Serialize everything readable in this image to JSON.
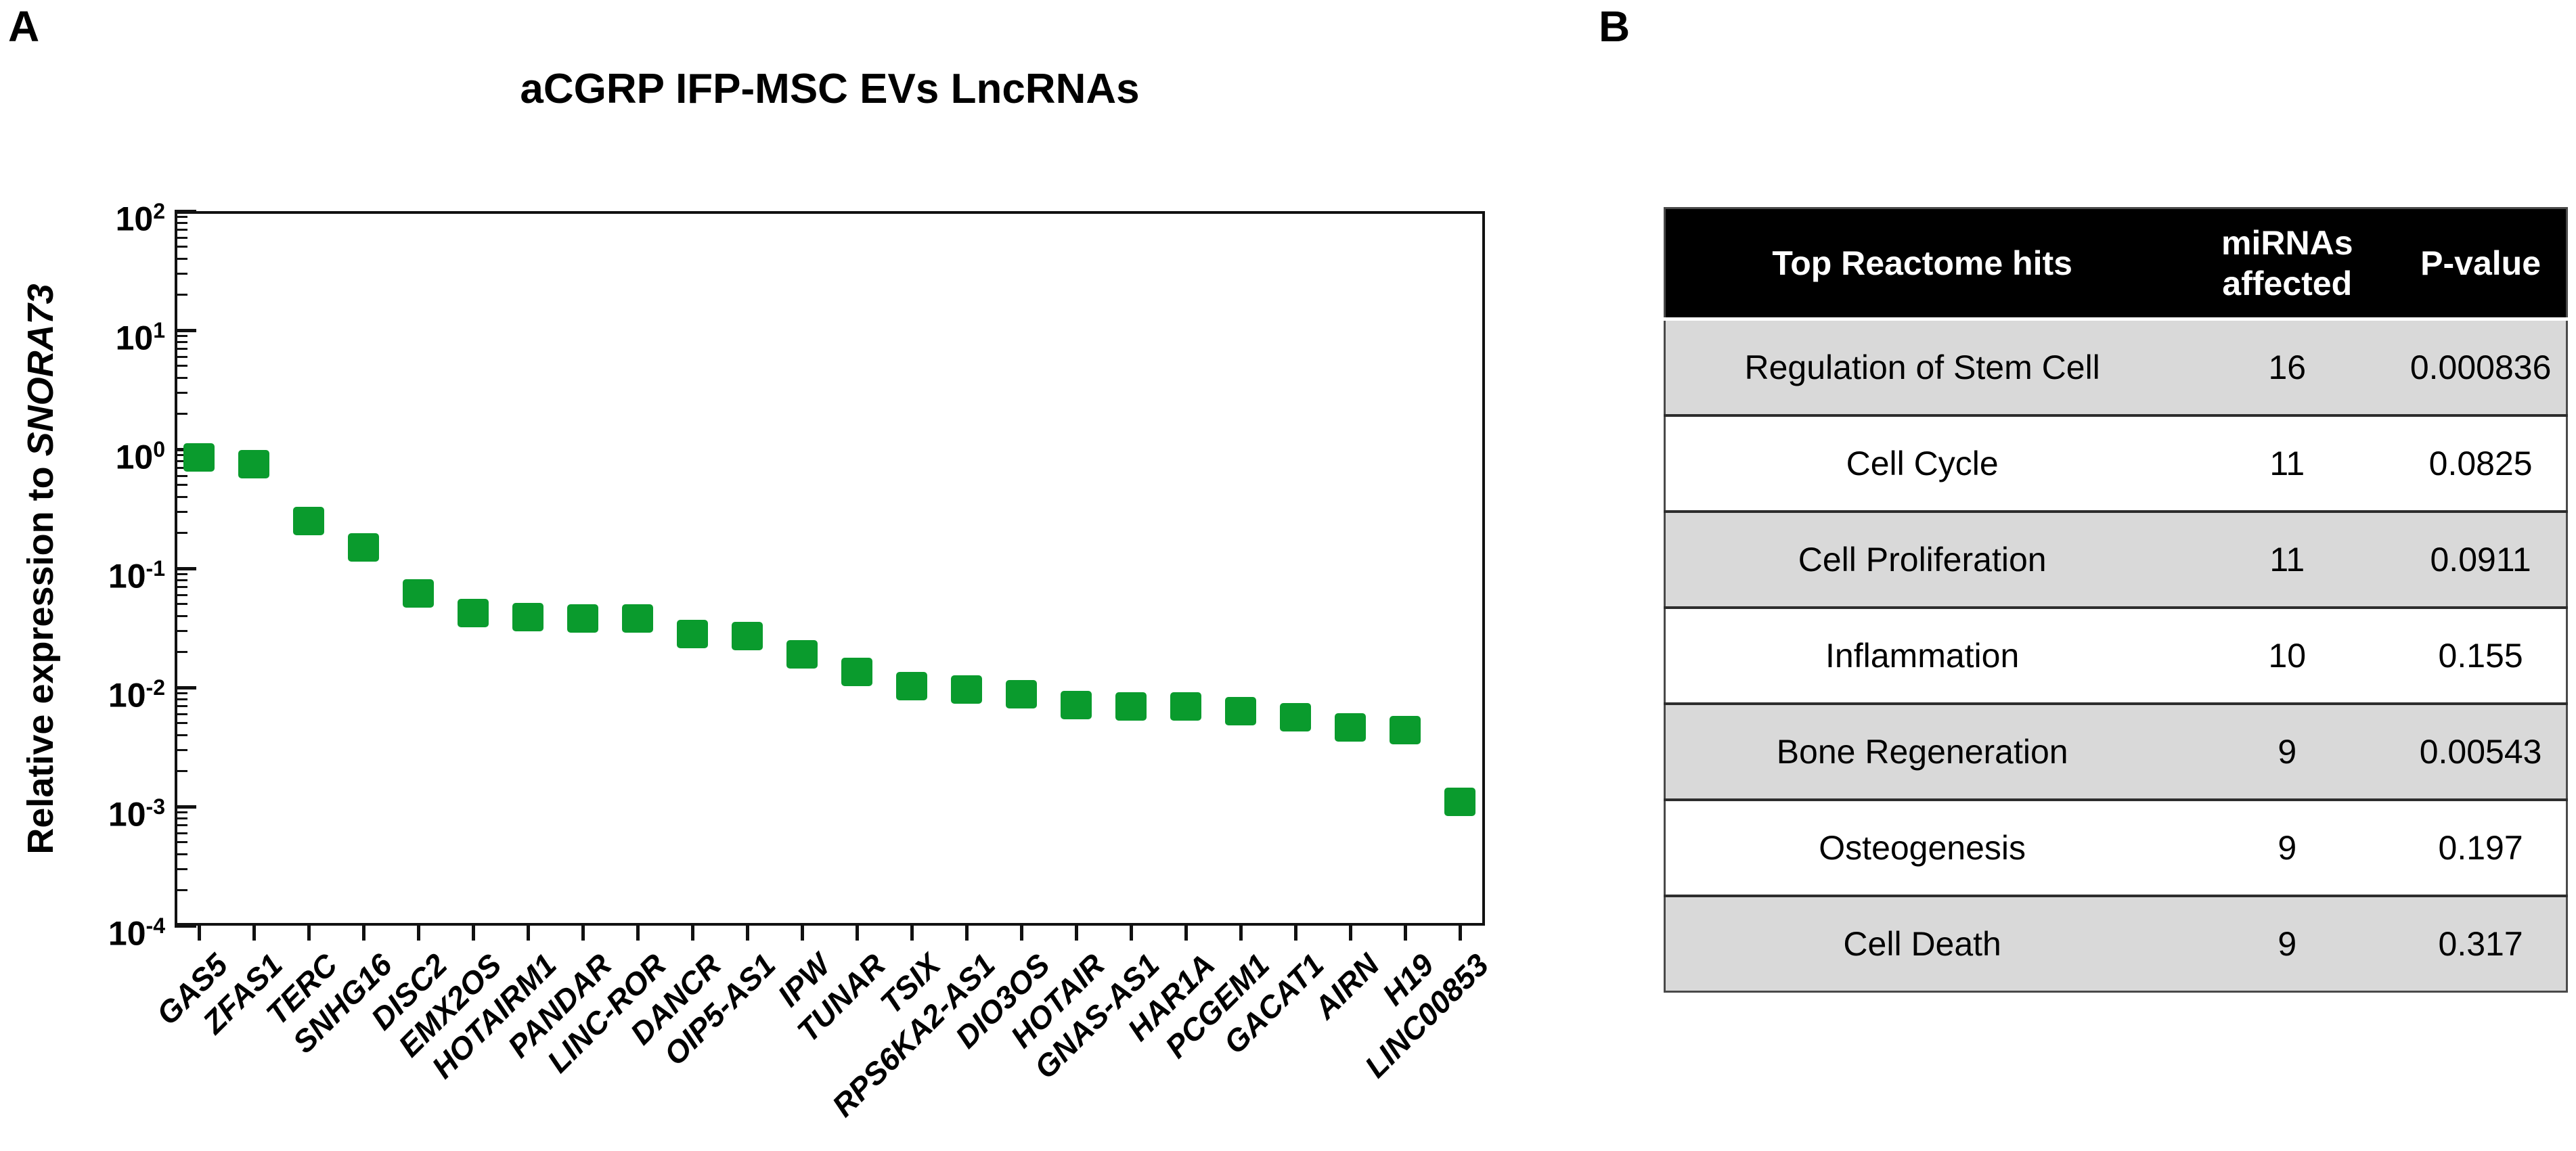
{
  "panels": {
    "a": "A",
    "b": "B"
  },
  "chart_data": {
    "type": "scatter",
    "title": "aCGRP IFP-MSC EVs LncRNAs",
    "ylabel_prefix": "Relative expression to ",
    "ylabel_gene": "SNORA73",
    "xlabel": "",
    "y_scale": "log",
    "ylim": [
      0.0001,
      100
    ],
    "y_tick_exponents": [
      2,
      1,
      0,
      -1,
      -2,
      -3,
      -4
    ],
    "grid": false,
    "legend": false,
    "marker_shape": "square",
    "marker_color": "#0a9b2d",
    "categories": [
      "GAS5",
      "ZFAS1",
      "TERC",
      "SNHG16",
      "DISC2",
      "EMX2OS",
      "HOTAIRM1",
      "PANDAR",
      "LINC-ROR",
      "DANCR",
      "OIP5-AS1",
      "IPW",
      "TUNAR",
      "TSIX",
      "RPS6KA2-AS1",
      "DIO3OS",
      "HOTAIR",
      "GNAS-AS1",
      "HAR1A",
      "PCGEM1",
      "GACAT1",
      "AIRN",
      "H19",
      "LINC00853"
    ],
    "values": [
      0.85,
      0.75,
      0.25,
      0.15,
      0.062,
      0.042,
      0.039,
      0.038,
      0.038,
      0.028,
      0.027,
      0.019,
      0.0135,
      0.0102,
      0.0096,
      0.0088,
      0.0071,
      0.0069,
      0.0069,
      0.0063,
      0.0056,
      0.0046,
      0.0044,
      0.0011
    ]
  },
  "table": {
    "headers": [
      "Top Reactome hits",
      "miRNAs affected",
      "P-value"
    ],
    "rows": [
      [
        "Regulation of Stem Cell",
        "16",
        "0.000836"
      ],
      [
        "Cell Cycle",
        "11",
        "0.0825"
      ],
      [
        "Cell Proliferation",
        "11",
        "0.0911"
      ],
      [
        "Inflammation",
        "10",
        "0.155"
      ],
      [
        "Bone Regeneration",
        "9",
        "0.00543"
      ],
      [
        "Osteogenesis",
        "9",
        "0.197"
      ],
      [
        "Cell Death",
        "9",
        "0.317"
      ]
    ],
    "header_bg": "#000000",
    "header_text_color": "#ffffff",
    "alt_row_bg": "#d9d9d9",
    "row_bg": "#ffffff"
  }
}
